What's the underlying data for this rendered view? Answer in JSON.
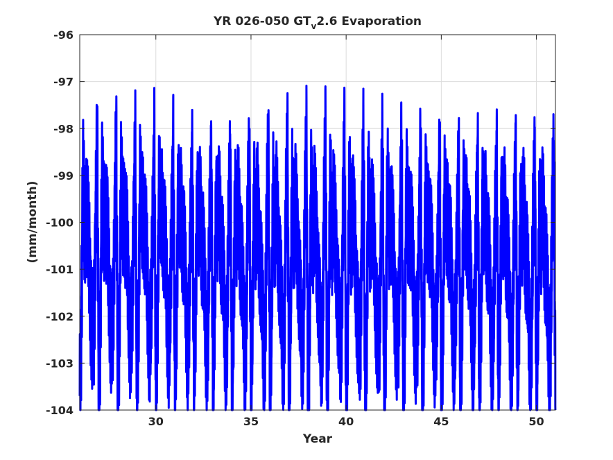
{
  "chart_data": {
    "type": "line",
    "title_main": "YR 026-050 GT",
    "title_sub": "v",
    "title_rest": "2.6 Evaporation",
    "xlabel": "Year",
    "ylabel": "(mm/month)",
    "xlim": [
      26,
      51
    ],
    "ylim": [
      -104,
      -96
    ],
    "xticks": [
      30,
      35,
      40,
      45,
      50
    ],
    "yticks": [
      -96,
      -97,
      -98,
      -99,
      -100,
      -101,
      -102,
      -103,
      -104
    ],
    "grid": true,
    "series": [
      {
        "color": "#0000ff",
        "x": [
          26.0,
          26.0833,
          26.1667,
          26.25,
          26.3333,
          26.4167,
          26.5,
          26.5833,
          26.6667,
          26.75,
          26.8333,
          26.9167
        ],
        "monthly_profile": [
          -103.6,
          -101.8,
          -98.4,
          -99.4,
          -98.9,
          -99.6,
          -100.2,
          -101.3,
          -102.4,
          -101.9,
          -99.2,
          -97.4
        ],
        "peak_by_year": [
          -96.9,
          -96.9,
          -96.9,
          -96.9,
          -96.9,
          -97.0,
          -97.0,
          -97.0,
          -97.0,
          -97.0,
          -97.0,
          -97.0,
          -97.0,
          -97.0,
          -97.0,
          -97.0,
          -97.0,
          -97.0,
          -97.05,
          -97.05,
          -97.05,
          -97.05,
          -97.05,
          -97.05,
          -97.05
        ],
        "trough_by_year": [
          -103.7,
          -103.7,
          -103.7,
          -103.7,
          -103.7,
          -103.7,
          -103.75,
          -103.75,
          -103.75,
          -103.8,
          -103.8,
          -103.8,
          -103.8,
          -103.8,
          -103.85,
          -103.85,
          -103.85,
          -103.85,
          -103.85,
          -103.85,
          -103.9,
          -103.9,
          -103.9,
          -103.9,
          -103.9
        ]
      }
    ]
  }
}
